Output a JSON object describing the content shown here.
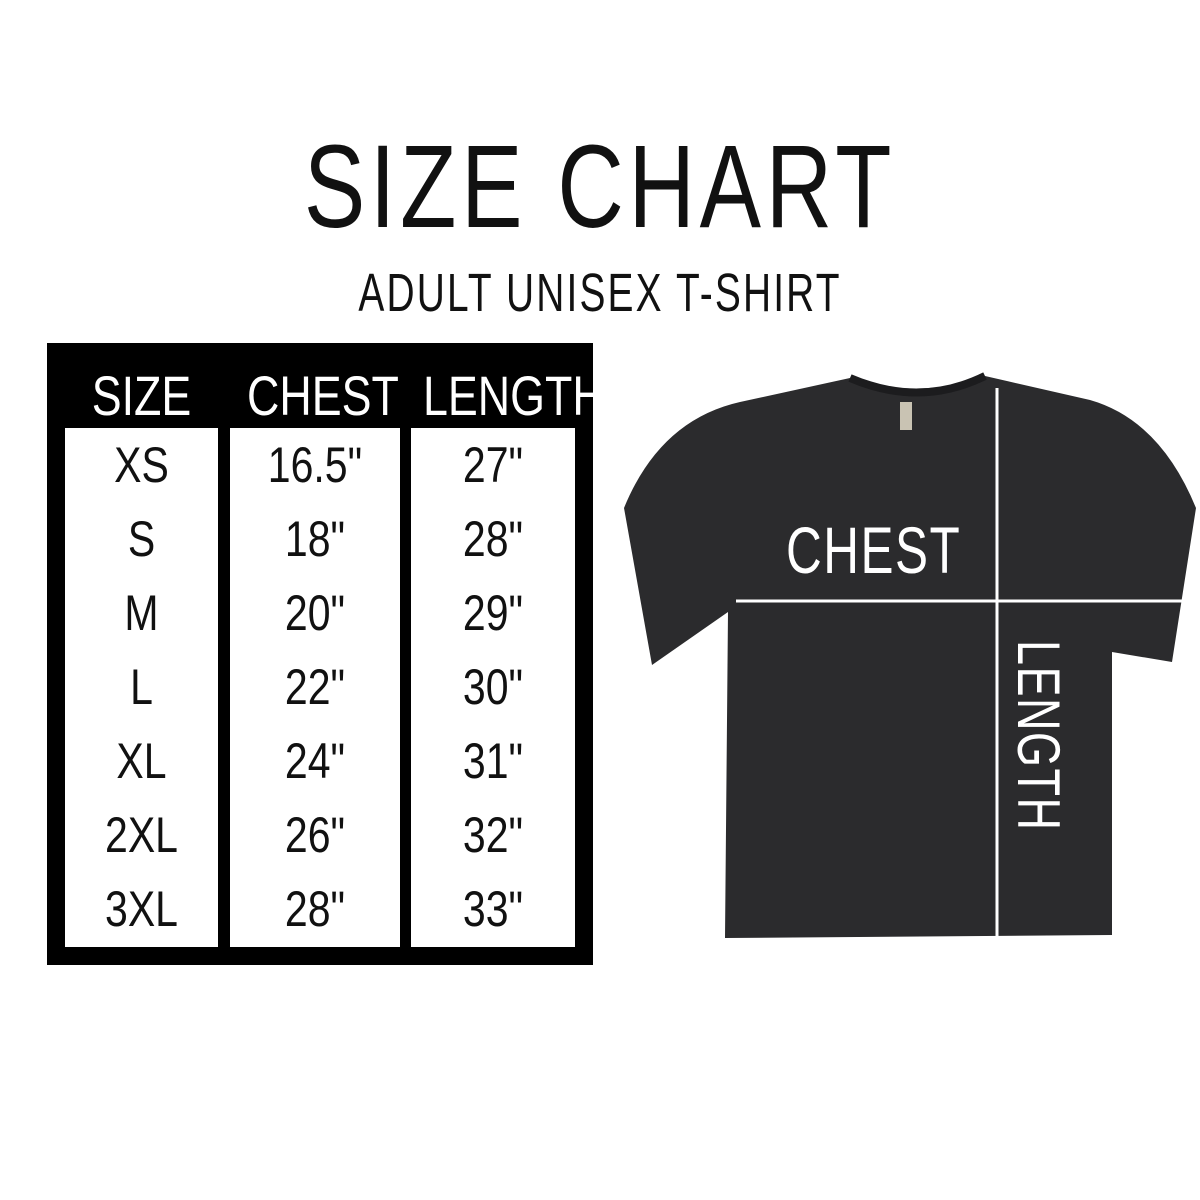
{
  "header": {
    "title": "SIZE CHART",
    "subtitle": "ADULT UNISEX T-SHIRT"
  },
  "table": {
    "columns": [
      "SIZE",
      "CHEST",
      "LENGTH"
    ],
    "sizes": [
      "XS",
      "S",
      "M",
      "L",
      "XL",
      "2XL",
      "3XL"
    ],
    "chest": [
      "16.5\"",
      "18\"",
      "20\"",
      "22\"",
      "24\"",
      "26\"",
      "28\""
    ],
    "length": [
      "27\"",
      "28\"",
      "29\"",
      "30\"",
      "31\"",
      "32\"",
      "33\""
    ]
  },
  "diagram": {
    "chest_label": "CHEST",
    "length_label": "LENGTH",
    "shirt_color": "#2b2b2d",
    "line_color": "#ffffff"
  }
}
